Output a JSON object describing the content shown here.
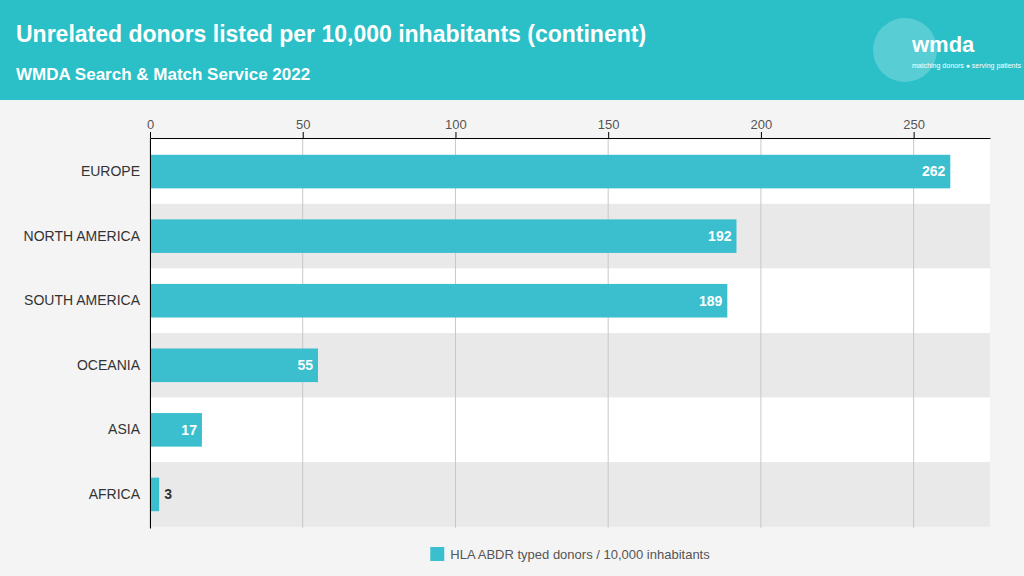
{
  "chart_data": {
    "type": "bar",
    "orientation": "horizontal",
    "title": "Unrelated donors listed per 10,000 inhabitants (continent)",
    "subtitle": "WMDA Search & Match Service 2022",
    "annotations": [
      "wmda",
      "matching donors ● serving patients"
    ],
    "categories": [
      "EUROPE",
      "NORTH AMERICA",
      "SOUTH AMERICA",
      "OCEANIA",
      "ASIA",
      "AFRICA"
    ],
    "series": [
      {
        "name": "HLA ABDR typed donors / 10,000 inhabitants",
        "color": "#3bbfcf",
        "values": [
          262,
          192,
          189,
          55,
          17,
          3
        ]
      }
    ],
    "xlim": [
      0,
      275
    ],
    "xticks": [
      0,
      50,
      100,
      150,
      200,
      250
    ],
    "grid": true,
    "legend": "bottom",
    "data_labels": true
  }
}
